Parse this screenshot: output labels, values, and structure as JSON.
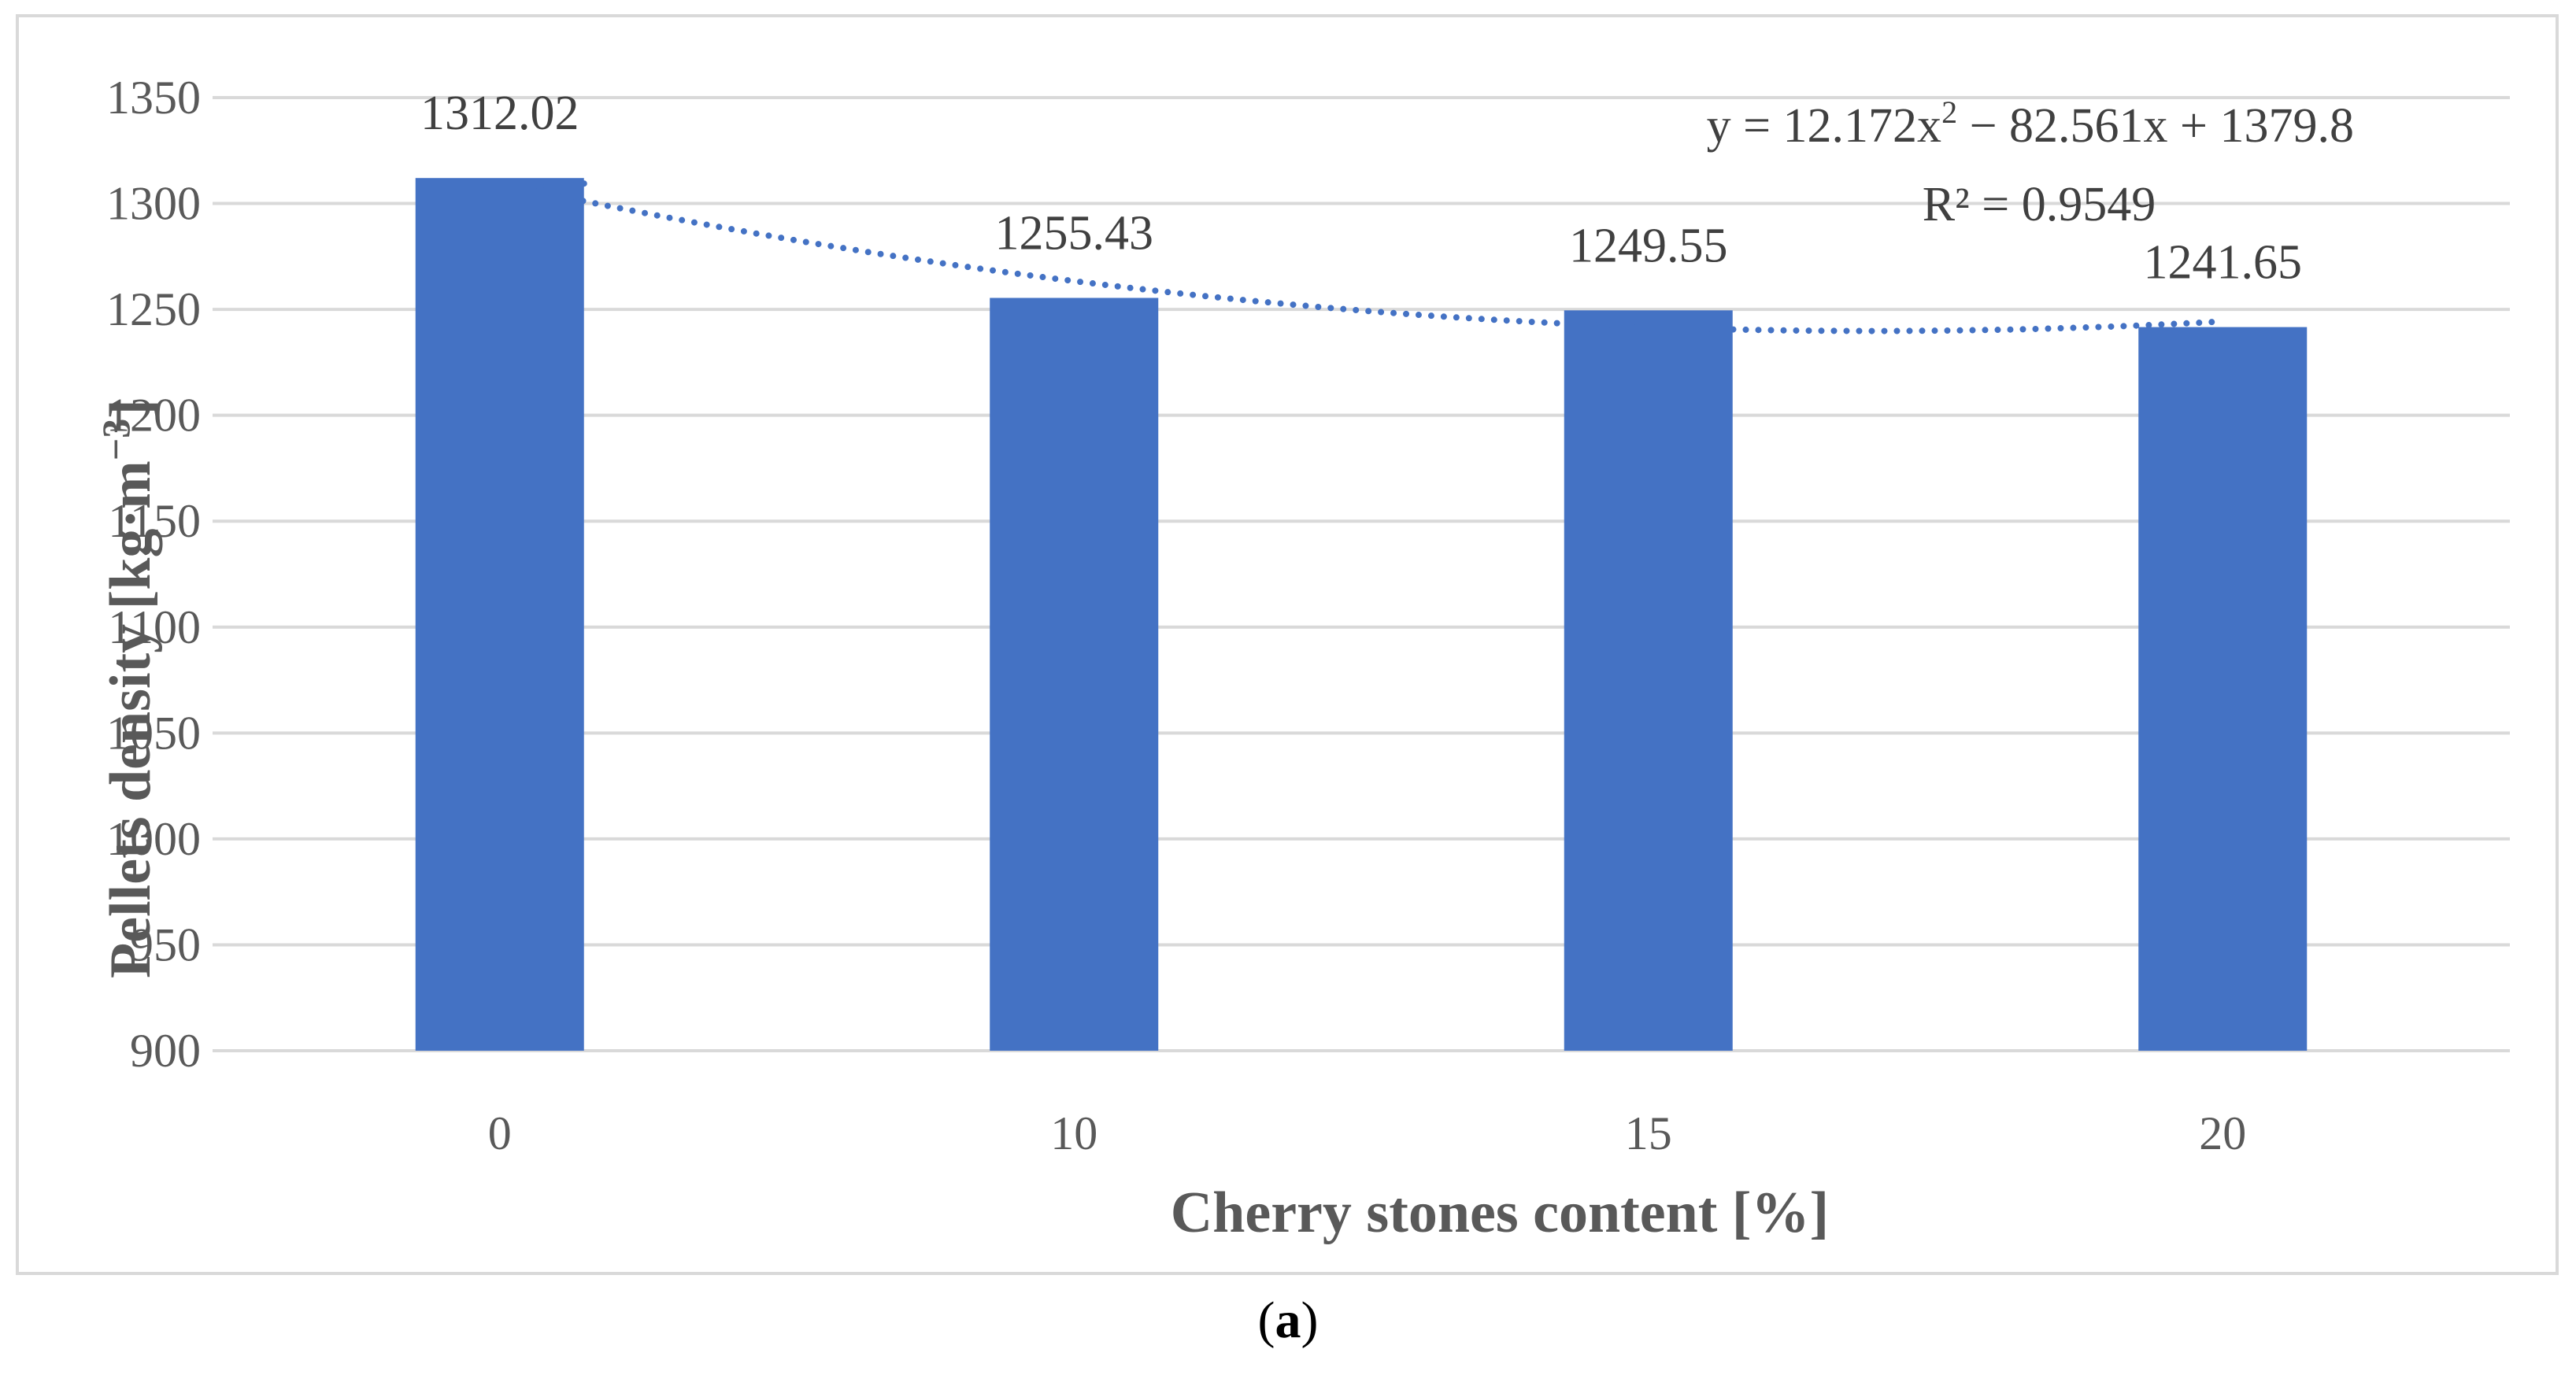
{
  "chart_data": {
    "type": "bar",
    "categories": [
      "0",
      "10",
      "15",
      "20"
    ],
    "values": [
      1312.02,
      1255.43,
      1249.55,
      1241.65
    ],
    "data_labels": [
      "1312.02",
      "1255.43",
      "1249.55",
      "1241.65"
    ],
    "xlabel": "Cherry stones content [%]",
    "ylabel_main": "Pellets  density [kg·m",
    "ylabel_sup": "−3",
    "ylabel_end": "]",
    "ylim": [
      900,
      1350
    ],
    "yticks": [
      900,
      950,
      1000,
      1050,
      1100,
      1150,
      1200,
      1250,
      1300,
      1350
    ],
    "grid": true,
    "bar_color": "#4472c4",
    "trendline": {
      "type": "polynomial-2",
      "a": 12.172,
      "b": -82.561,
      "c": 1379.8,
      "equation_prefix": "y = 12.172x",
      "equation_sup": "2",
      "equation_suffix": " − 82.561x + 1379.8",
      "r2_label": "R² = 0.9549",
      "color": "#4472c4",
      "style": "dotted"
    }
  },
  "caption": {
    "open": "(",
    "letter": "a",
    "close": ")"
  }
}
